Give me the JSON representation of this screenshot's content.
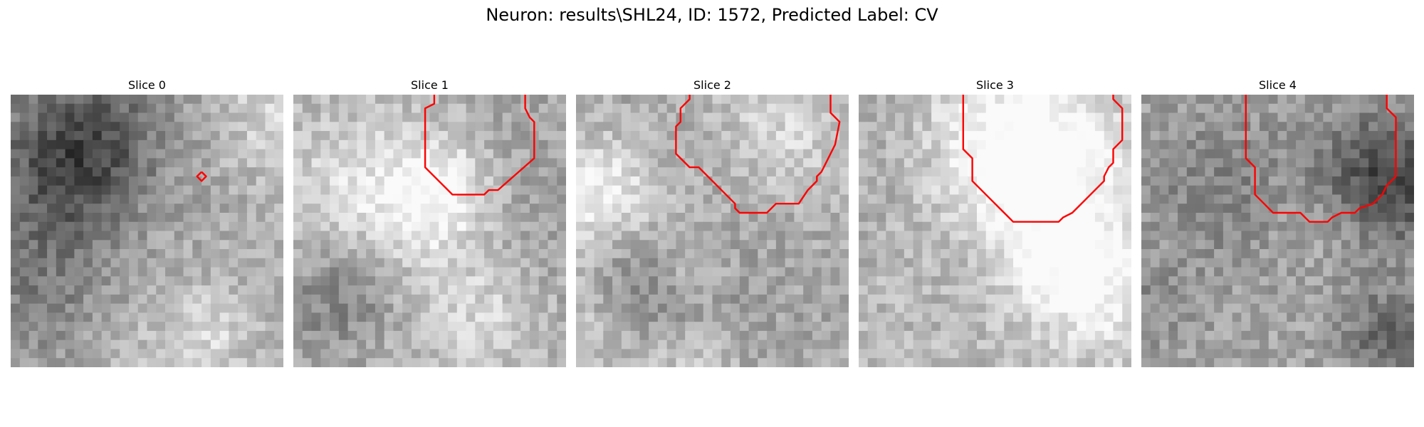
{
  "figure": {
    "title": "Neuron: results\\SHL24, ID: 1572, Predicted Label: CV",
    "contour_color": "#ff0000",
    "colormap": "grayscale"
  },
  "slices": [
    {
      "title": "Slice 0",
      "contour": [
        [
          21.0,
          8.5
        ],
        [
          21.5,
          9.0
        ],
        [
          21.0,
          9.5
        ],
        [
          20.5,
          9.0
        ],
        [
          21.0,
          8.5
        ]
      ]
    },
    {
      "title": "Slice 1",
      "contour": [
        [
          15.5,
          0.0
        ],
        [
          15.5,
          1.0
        ],
        [
          14.5,
          1.5
        ],
        [
          14.5,
          8.0
        ],
        [
          17.5,
          11.0
        ],
        [
          21.0,
          11.0
        ],
        [
          21.5,
          10.5
        ],
        [
          22.5,
          10.5
        ],
        [
          26.5,
          7.0
        ],
        [
          26.5,
          3.0
        ],
        [
          26.0,
          2.5
        ],
        [
          25.5,
          1.5
        ],
        [
          25.5,
          0.0
        ]
      ]
    },
    {
      "title": "Slice 2",
      "contour": [
        [
          12.5,
          0.0
        ],
        [
          12.5,
          0.5
        ],
        [
          11.5,
          1.5
        ],
        [
          11.5,
          3.0
        ],
        [
          11.0,
          3.5
        ],
        [
          11.0,
          6.5
        ],
        [
          12.5,
          8.0
        ],
        [
          13.5,
          8.0
        ],
        [
          17.5,
          12.0
        ],
        [
          17.5,
          12.5
        ],
        [
          18.0,
          13.0
        ],
        [
          21.0,
          13.0
        ],
        [
          21.5,
          12.5
        ],
        [
          22.0,
          12.0
        ],
        [
          24.5,
          12.0
        ],
        [
          25.5,
          10.5
        ],
        [
          26.5,
          9.5
        ],
        [
          26.5,
          9.0
        ],
        [
          27.0,
          8.5
        ],
        [
          27.5,
          7.5
        ],
        [
          28.0,
          6.5
        ],
        [
          28.5,
          5.5
        ],
        [
          29.0,
          3.0
        ],
        [
          28.5,
          2.5
        ],
        [
          28.0,
          2.0
        ],
        [
          28.0,
          0.0
        ]
      ]
    },
    {
      "title": "Slice 3",
      "contour": [
        [
          11.5,
          0.0
        ],
        [
          11.5,
          6.0
        ],
        [
          12.5,
          7.0
        ],
        [
          12.5,
          9.5
        ],
        [
          14.5,
          11.5
        ],
        [
          15.5,
          12.5
        ],
        [
          16.5,
          13.5
        ],
        [
          17.0,
          14.0
        ],
        [
          22.0,
          14.0
        ],
        [
          22.5,
          13.5
        ],
        [
          23.5,
          13.0
        ],
        [
          24.0,
          12.5
        ],
        [
          25.0,
          11.5
        ],
        [
          26.5,
          10.0
        ],
        [
          27.0,
          9.5
        ],
        [
          27.0,
          9.0
        ],
        [
          27.5,
          8.0
        ],
        [
          28.0,
          7.5
        ],
        [
          28.0,
          6.0
        ],
        [
          28.5,
          5.5
        ],
        [
          29.0,
          5.0
        ],
        [
          29.0,
          1.5
        ],
        [
          28.5,
          1.0
        ],
        [
          28.0,
          0.5
        ],
        [
          28.0,
          0.0
        ]
      ]
    },
    {
      "title": "Slice 4",
      "contour": [
        [
          11.5,
          0.0
        ],
        [
          11.5,
          7.0
        ],
        [
          12.5,
          8.0
        ],
        [
          12.5,
          11.0
        ],
        [
          13.0,
          11.5
        ],
        [
          13.5,
          12.0
        ],
        [
          14.0,
          12.5
        ],
        [
          14.5,
          13.0
        ],
        [
          17.5,
          13.0
        ],
        [
          18.0,
          13.5
        ],
        [
          18.5,
          14.0
        ],
        [
          20.5,
          14.0
        ],
        [
          21.0,
          13.5
        ],
        [
          22.0,
          13.0
        ],
        [
          23.5,
          13.0
        ],
        [
          24.0,
          12.5
        ],
        [
          25.5,
          12.0
        ],
        [
          26.5,
          11.0
        ],
        [
          27.0,
          10.0
        ],
        [
          27.5,
          9.5
        ],
        [
          28.0,
          9.0
        ],
        [
          28.0,
          2.5
        ],
        [
          27.0,
          1.5
        ],
        [
          27.0,
          0.0
        ]
      ]
    }
  ]
}
